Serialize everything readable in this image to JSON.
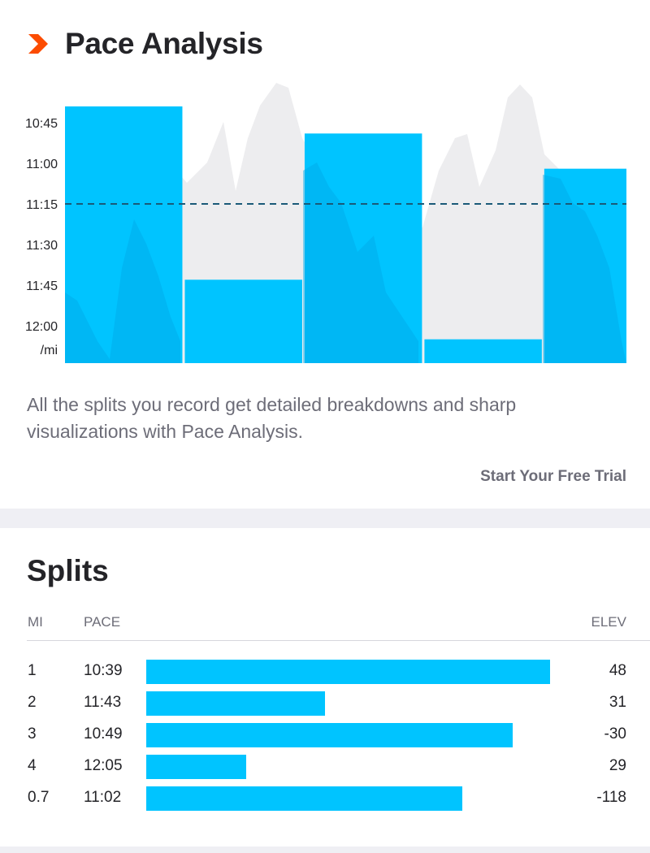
{
  "pace_analysis": {
    "title": "Pace Analysis",
    "description": "All the splits you record get detailed breakdowns and sharp visualizations with Pace Analysis.",
    "cta_label": "Start Your Free Trial",
    "icon": "chevron-right-icon",
    "accent_color": "#fc4c02"
  },
  "chart_data": {
    "type": "bar",
    "title": "",
    "xlabel": "",
    "ylabel": "/mi",
    "y_ticks": [
      "10:45",
      "11:00",
      "11:15",
      "11:30",
      "11:45",
      "12:00"
    ],
    "y_unit_label": "/mi",
    "y_axis": "pace (min/mi), faster at top",
    "ylim": [
      "12:15",
      "10:30"
    ],
    "categories": [
      "1",
      "2",
      "3",
      "4",
      "0.7"
    ],
    "values": [
      "10:39",
      "11:43",
      "10:49",
      "12:05",
      "11:02"
    ],
    "relative_widths": [
      1,
      1,
      1,
      1,
      0.7
    ],
    "average_line": "11:15",
    "bar_color": "#00c4ff",
    "average_line_color": "#1a5a78",
    "background_profile": "gray elevation area behind bars",
    "grid": false
  },
  "splits": {
    "title": "Splits",
    "headers": {
      "mi": "MI",
      "pace": "PACE",
      "elev": "ELEV"
    },
    "rows": [
      {
        "mi": "1",
        "pace": "10:39",
        "elev": "48",
        "bar_fraction": 0.97
      },
      {
        "mi": "2",
        "pace": "11:43",
        "elev": "31",
        "bar_fraction": 0.43
      },
      {
        "mi": "3",
        "pace": "10:49",
        "elev": "-30",
        "bar_fraction": 0.88
      },
      {
        "mi": "4",
        "pace": "12:05",
        "elev": "29",
        "bar_fraction": 0.24
      },
      {
        "mi": "0.7",
        "pace": "11:02",
        "elev": "-118",
        "bar_fraction": 0.76
      }
    ],
    "bar_color": "#00c4ff"
  }
}
